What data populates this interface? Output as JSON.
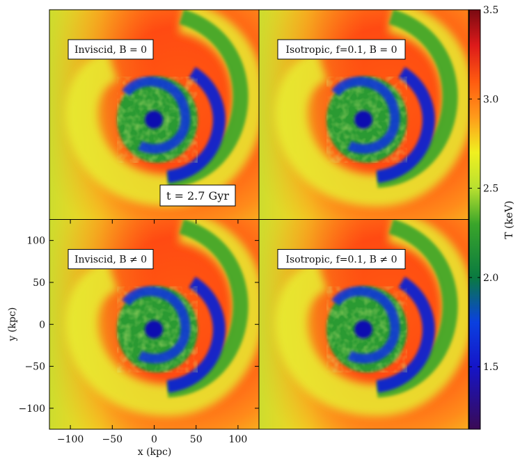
{
  "chart_data": {
    "type": "heatmap",
    "title": "",
    "layout": "2x2 grid of temperature maps with shared colorbar",
    "panels": [
      {
        "label": "Inviscid, B = 0",
        "row": 0,
        "col": 0
      },
      {
        "label": "Isotropic, f=0.1, B = 0",
        "row": 0,
        "col": 1
      },
      {
        "label": "Inviscid, B ≠ 0",
        "row": 1,
        "col": 0
      },
      {
        "label": "Isotropic, f=0.1, B ≠ 0",
        "row": 1,
        "col": 1
      }
    ],
    "annotation": "t = 2.7 Gyr",
    "xlabel": "x  (kpc)",
    "ylabel": "y  (kpc)",
    "xlim": [
      -125,
      125
    ],
    "ylim": [
      -125,
      125
    ],
    "xticks": [
      -100,
      -50,
      0,
      50,
      100
    ],
    "yticks": [
      -100,
      -50,
      0,
      50,
      100
    ],
    "colorbar": {
      "label": "T (keV)",
      "range": [
        1.15,
        3.5
      ],
      "ticks": [
        1.5,
        2.0,
        2.5,
        3.0,
        3.5
      ],
      "colormap_stops": [
        {
          "value": 1.15,
          "color": "#3a0a55"
        },
        {
          "value": 1.5,
          "color": "#1515c8"
        },
        {
          "value": 1.75,
          "color": "#0a40e0"
        },
        {
          "value": 2.0,
          "color": "#0a7a40"
        },
        {
          "value": 2.3,
          "color": "#3aa52a"
        },
        {
          "value": 2.5,
          "color": "#b8e030"
        },
        {
          "value": 2.7,
          "color": "#f0f020"
        },
        {
          "value": 2.9,
          "color": "#ff9a1a"
        },
        {
          "value": 3.1,
          "color": "#ff5a10"
        },
        {
          "value": 3.3,
          "color": "#dd1a1a"
        },
        {
          "value": 3.5,
          "color": "#7a0a12"
        }
      ]
    }
  }
}
